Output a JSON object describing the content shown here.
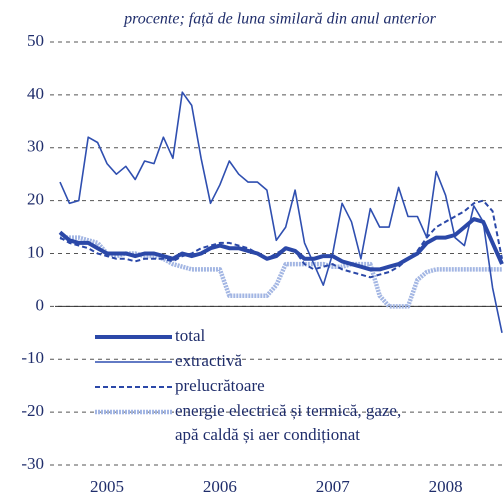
{
  "chart_data": {
    "type": "line",
    "subtitle": "procente; față de luna similară din anul anterior",
    "categories": [
      null,
      null,
      null,
      null,
      null,
      "2005",
      null,
      null,
      null,
      null,
      null,
      null,
      null,
      null,
      null,
      null,
      null,
      "2006",
      null,
      null,
      null,
      null,
      null,
      null,
      null,
      null,
      null,
      null,
      null,
      "2007",
      null,
      null,
      null,
      null,
      null,
      null,
      null,
      null,
      null,
      null,
      null,
      "2008",
      null,
      null,
      null,
      null,
      null,
      null
    ],
    "ylim": [
      -30,
      50
    ],
    "yticks": [
      -30,
      -20,
      -10,
      0,
      10,
      20,
      30,
      40,
      50
    ],
    "grid": true,
    "legend": "bottom-left",
    "series": [
      {
        "name": "total",
        "color": "#2b48a8",
        "width": 4,
        "dash": "none",
        "values": [
          14,
          12.5,
          12,
          12,
          11,
          10,
          10,
          10,
          9.5,
          10,
          10,
          9.5,
          9,
          10,
          9.5,
          10,
          11,
          11.5,
          11,
          11,
          10.5,
          10,
          9,
          9.5,
          11,
          10.5,
          9,
          9,
          9.5,
          9.5,
          8.5,
          8,
          7.5,
          7,
          7,
          7.5,
          8,
          9,
          10,
          12,
          13,
          13,
          13.5,
          15,
          16.5,
          16,
          12,
          8
        ]
      },
      {
        "name": "extractivă",
        "color": "#2f4fb0",
        "width": 1.6,
        "dash": "none",
        "values": [
          23.5,
          19.5,
          20,
          32,
          31,
          27,
          25,
          26.5,
          24,
          27.5,
          27,
          32,
          28,
          40.5,
          38,
          28,
          19.5,
          23,
          27.5,
          25,
          23.5,
          23.5,
          22,
          12.5,
          15,
          22,
          12,
          8,
          4,
          10,
          19.5,
          16,
          9,
          18.5,
          15,
          15,
          22.5,
          17,
          17,
          13,
          25.5,
          21,
          13,
          11.5,
          19,
          16,
          3.5,
          -5
        ]
      },
      {
        "name": "prelucrătoare",
        "color": "#2b48a8",
        "width": 2,
        "dash": "5 3",
        "values": [
          13,
          12,
          11.5,
          11,
          10,
          9.5,
          9,
          9,
          8.5,
          9,
          9,
          9,
          8.5,
          9.5,
          10,
          11,
          11.5,
          12,
          12,
          11.5,
          11,
          10,
          9,
          10,
          11,
          10.5,
          8,
          7,
          7.5,
          8,
          7,
          6.5,
          6,
          5.5,
          6,
          6.5,
          7.5,
          9,
          10.5,
          13,
          15,
          16,
          17,
          18,
          19.5,
          20,
          18,
          9
        ]
      },
      {
        "name": "energie electrică și termică, gaze,\napă caldă și aer condiționat",
        "color": "#a3b6e3",
        "width": 4.5,
        "dash": "2 1",
        "values": [
          13,
          13,
          13,
          12.5,
          12,
          10,
          9.5,
          10,
          10,
          9.5,
          9.5,
          9,
          8,
          7.5,
          7,
          7,
          7,
          7,
          2,
          2,
          2,
          2,
          2,
          4,
          8,
          8,
          8,
          8,
          8,
          7.5,
          7.5,
          8,
          8,
          8,
          2,
          0,
          0,
          0,
          5,
          6.5,
          7,
          7,
          7,
          7,
          7,
          7,
          7,
          7
        ]
      }
    ]
  }
}
